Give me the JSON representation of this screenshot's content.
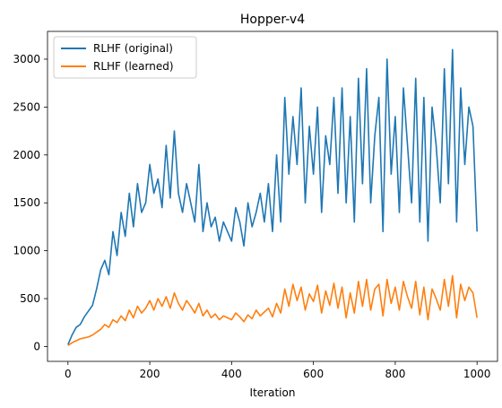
{
  "chart_data": {
    "type": "line",
    "title": "Hopper-v4",
    "xlabel": "Iteration",
    "ylabel": "",
    "xlim": [
      -50,
      1050
    ],
    "ylim": [
      -155,
      3290
    ],
    "xticks": [
      0,
      200,
      400,
      600,
      800,
      1000
    ],
    "yticks": [
      0,
      500,
      1000,
      1500,
      2000,
      2500,
      3000
    ],
    "grid": false,
    "legend": "top-left",
    "series": [
      {
        "name": "RLHF (original)",
        "color": "#1f77b4",
        "x": [
          0,
          10,
          20,
          30,
          40,
          50,
          60,
          70,
          80,
          90,
          100,
          110,
          120,
          130,
          140,
          150,
          160,
          170,
          180,
          190,
          200,
          210,
          220,
          230,
          240,
          250,
          260,
          270,
          280,
          290,
          300,
          310,
          320,
          330,
          340,
          350,
          360,
          370,
          380,
          390,
          400,
          410,
          420,
          430,
          440,
          450,
          460,
          470,
          480,
          490,
          500,
          510,
          520,
          530,
          540,
          550,
          560,
          570,
          580,
          590,
          600,
          610,
          620,
          630,
          640,
          650,
          660,
          670,
          680,
          690,
          700,
          710,
          720,
          730,
          740,
          750,
          760,
          770,
          780,
          790,
          800,
          810,
          820,
          830,
          840,
          850,
          860,
          870,
          880,
          890,
          900,
          910,
          920,
          930,
          940,
          950,
          960,
          970,
          980,
          990,
          1000
        ],
        "y": [
          20,
          120,
          200,
          230,
          310,
          370,
          430,
          600,
          800,
          900,
          750,
          1200,
          950,
          1400,
          1150,
          1600,
          1250,
          1700,
          1400,
          1500,
          1900,
          1600,
          1750,
          1450,
          2100,
          1550,
          2250,
          1600,
          1400,
          1700,
          1500,
          1300,
          1900,
          1200,
          1500,
          1250,
          1350,
          1100,
          1300,
          1200,
          1100,
          1450,
          1300,
          1050,
          1500,
          1250,
          1400,
          1600,
          1300,
          1700,
          1200,
          2000,
          1300,
          2600,
          1800,
          2400,
          1900,
          2700,
          1500,
          2300,
          1800,
          2500,
          1400,
          2200,
          1900,
          2600,
          1600,
          2700,
          1500,
          2400,
          1300,
          2800,
          1700,
          2900,
          1500,
          2200,
          2600,
          1200,
          3000,
          1800,
          2400,
          1400,
          2700,
          2100,
          1500,
          2800,
          1300,
          2600,
          1100,
          2500,
          2100,
          1500,
          2900,
          1700,
          3100,
          1300,
          2700,
          1900,
          2500,
          2300,
          1200
        ]
      },
      {
        "name": "RLHF (learned)",
        "color": "#ff7f0e",
        "x": [
          0,
          10,
          20,
          30,
          40,
          50,
          60,
          70,
          80,
          90,
          100,
          110,
          120,
          130,
          140,
          150,
          160,
          170,
          180,
          190,
          200,
          210,
          220,
          230,
          240,
          250,
          260,
          270,
          280,
          290,
          300,
          310,
          320,
          330,
          340,
          350,
          360,
          370,
          380,
          390,
          400,
          410,
          420,
          430,
          440,
          450,
          460,
          470,
          480,
          490,
          500,
          510,
          520,
          530,
          540,
          550,
          560,
          570,
          580,
          590,
          600,
          610,
          620,
          630,
          640,
          650,
          660,
          670,
          680,
          690,
          700,
          710,
          720,
          730,
          740,
          750,
          760,
          770,
          780,
          790,
          800,
          810,
          820,
          830,
          840,
          850,
          860,
          870,
          880,
          890,
          900,
          910,
          920,
          930,
          940,
          950,
          960,
          970,
          980,
          990,
          1000
        ],
        "y": [
          10,
          40,
          60,
          80,
          90,
          100,
          120,
          150,
          180,
          230,
          200,
          280,
          250,
          320,
          270,
          380,
          300,
          420,
          350,
          400,
          480,
          380,
          500,
          420,
          520,
          400,
          560,
          450,
          380,
          480,
          420,
          350,
          450,
          320,
          380,
          300,
          340,
          280,
          320,
          300,
          280,
          350,
          310,
          260,
          330,
          290,
          380,
          320,
          360,
          400,
          310,
          450,
          350,
          600,
          420,
          650,
          480,
          620,
          380,
          550,
          470,
          640,
          350,
          580,
          430,
          660,
          400,
          620,
          300,
          560,
          350,
          680,
          420,
          700,
          380,
          600,
          650,
          320,
          700,
          450,
          620,
          380,
          680,
          520,
          400,
          680,
          330,
          620,
          280,
          600,
          500,
          380,
          700,
          420,
          740,
          300,
          650,
          480,
          620,
          560,
          300
        ]
      }
    ]
  }
}
